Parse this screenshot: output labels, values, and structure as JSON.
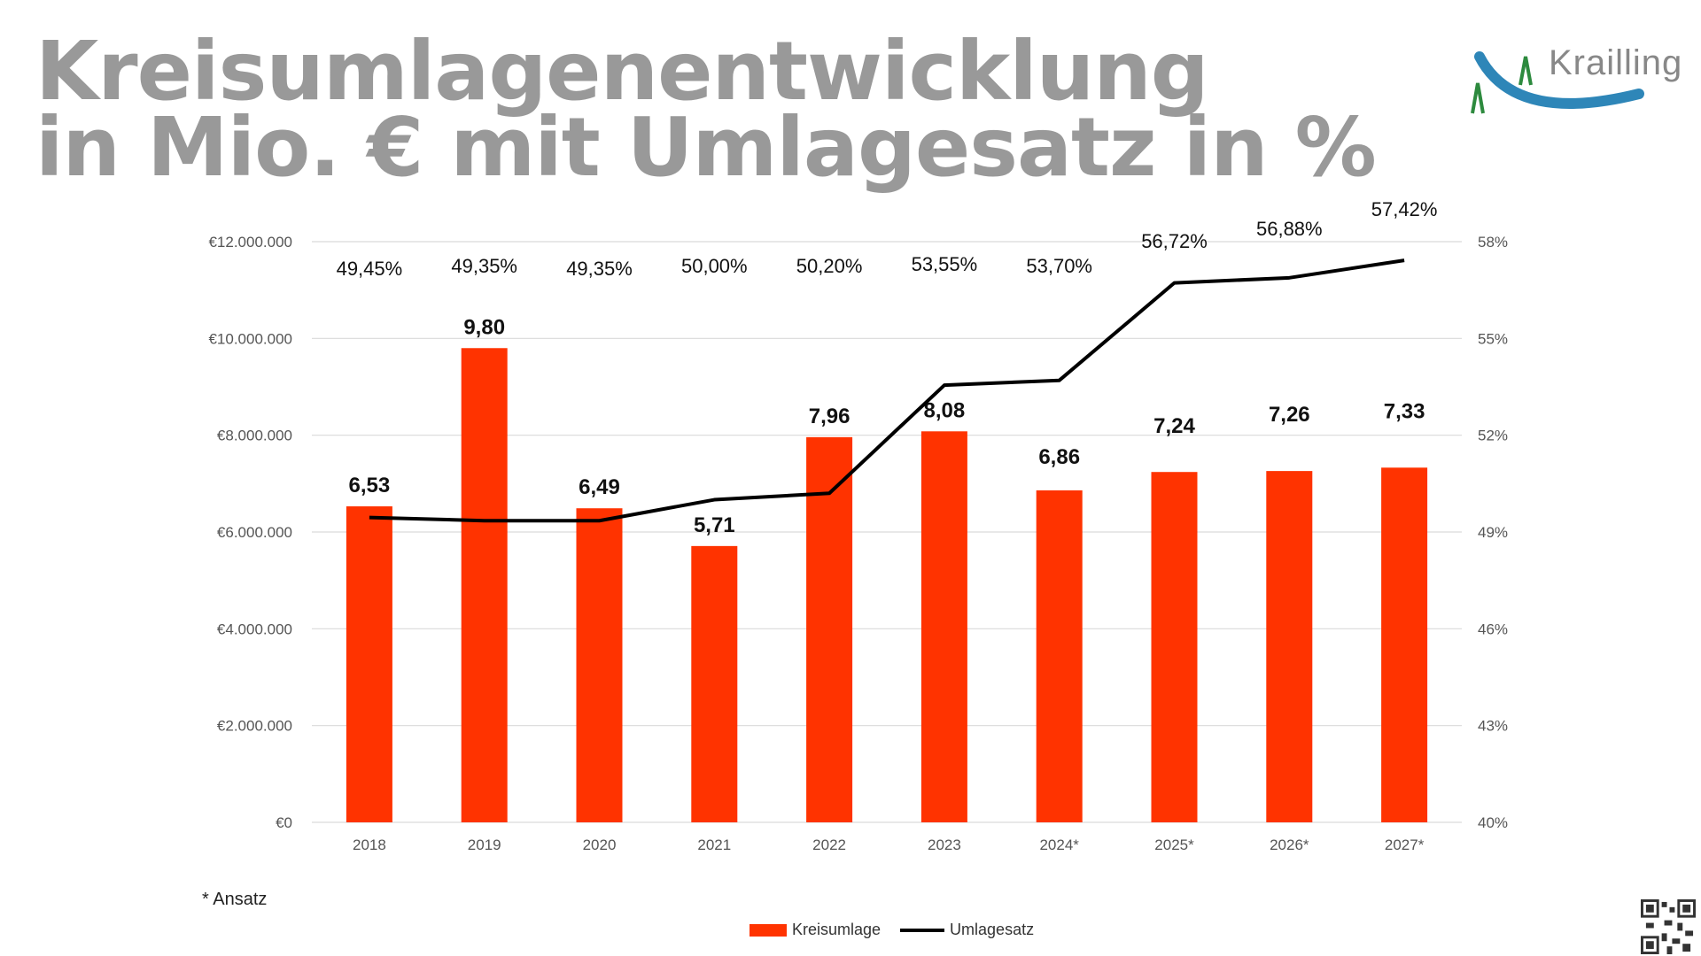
{
  "title_lines": [
    "Kreisumlagenentwicklung",
    "in Mio. € mit Umlagesatz in %"
  ],
  "logo": {
    "text": "Krailling",
    "colors": {
      "blue": "#2e86b8",
      "green": "#2d8a3e",
      "text": "#888888"
    }
  },
  "footnote": "* Ansatz",
  "colors": {
    "bar": "#ff3300",
    "line": "#000000",
    "grid": "#d9d9d9",
    "title": "#999999"
  },
  "chart_data": {
    "type": "bar",
    "categories": [
      "2018",
      "2019",
      "2020",
      "2021",
      "2022",
      "2023",
      "2024*",
      "2025*",
      "2026*",
      "2027*"
    ],
    "series": [
      {
        "name": "Kreisumlage",
        "type": "bar",
        "axis": "left",
        "values": [
          6530000,
          9800000,
          6490000,
          5710000,
          7960000,
          8080000,
          6860000,
          7240000,
          7260000,
          7330000
        ],
        "labels": [
          "6,53",
          "9,80",
          "6,49",
          "5,71",
          "7,96",
          "8,08",
          "6,86",
          "7,24",
          "7,26",
          "7,33"
        ]
      },
      {
        "name": "Umlagesatz",
        "type": "line",
        "axis": "right",
        "values": [
          49.45,
          49.35,
          49.35,
          50.0,
          50.2,
          53.55,
          53.7,
          56.72,
          56.88,
          57.42
        ],
        "labels": [
          "49,45%",
          "49,35%",
          "49,35%",
          "50,00%",
          "50,20%",
          "53,55%",
          "53,70%",
          "56,72%",
          "56,88%",
          "57,42%"
        ]
      }
    ],
    "y_left": {
      "range": [
        0,
        12000000
      ],
      "ticks": [
        0,
        2000000,
        4000000,
        6000000,
        8000000,
        10000000,
        12000000
      ],
      "tick_labels": [
        "€0",
        "€2.000.000",
        "€4.000.000",
        "€6.000.000",
        "€8.000.000",
        "€10.000.000",
        "€12.000.000"
      ]
    },
    "y_right": {
      "range": [
        40,
        58
      ],
      "ticks": [
        40,
        43,
        46,
        49,
        52,
        55,
        58
      ],
      "tick_labels": [
        "40%",
        "43%",
        "46%",
        "49%",
        "52%",
        "55%",
        "58%"
      ]
    },
    "grid": true,
    "legend": {
      "position": "bottom",
      "entries": [
        "Kreisumlage",
        "Umlagesatz"
      ]
    }
  }
}
